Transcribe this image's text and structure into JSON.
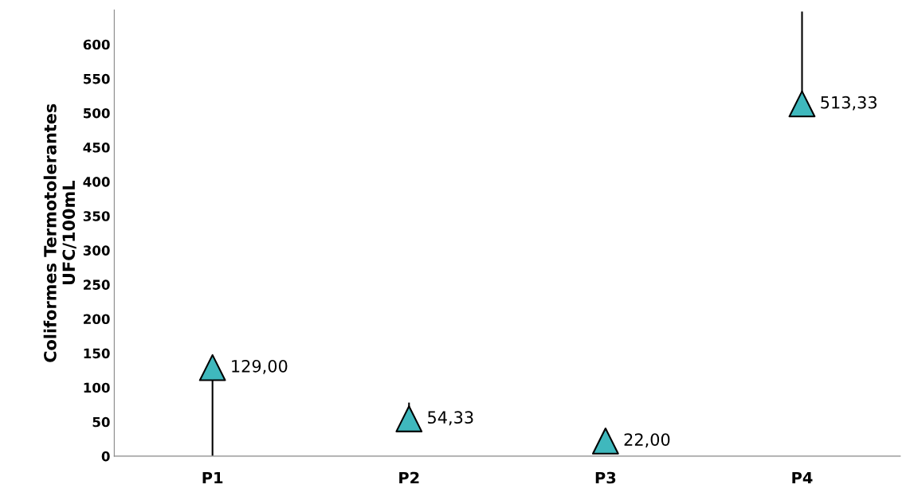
{
  "chart_data": {
    "type": "scatter",
    "ylabel": "Coliformes Termotolerantes\nUFC/100mL",
    "categories": [
      "P1",
      "P2",
      "P3",
      "P4"
    ],
    "values": [
      129,
      54.33,
      22,
      513.33
    ],
    "value_labels": [
      "129,00",
      "54,33",
      "22,00",
      "513,33"
    ],
    "errors": [
      [
        0,
        129
      ],
      [
        54.33,
        78
      ],
      null,
      [
        513.33,
        648
      ]
    ],
    "color": "#3fb8bd",
    "marker": "triangle",
    "ylim": [
      0,
      650
    ],
    "yticks": [
      0,
      50,
      100,
      150,
      200,
      250,
      300,
      350,
      400,
      450,
      500,
      550,
      600
    ],
    "grid": false,
    "legend": false
  }
}
